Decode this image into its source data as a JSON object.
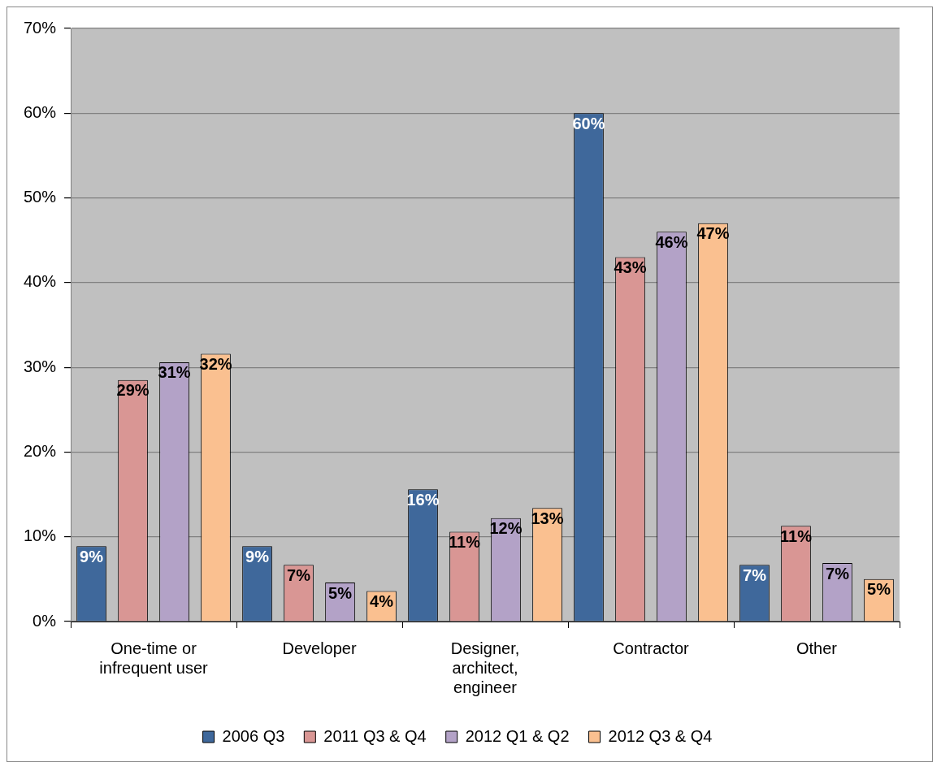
{
  "chart_data": {
    "type": "bar",
    "categories": [
      "One-time or infrequent user",
      "Developer",
      "Designer, architect, engineer",
      "Contractor",
      "Other"
    ],
    "series": [
      {
        "name": "2006 Q3",
        "color": "#3f689b",
        "values": [
          8.9,
          8.9,
          15.6,
          60.0,
          6.7
        ],
        "value_labels": [
          "9%",
          "9%",
          "16%",
          "60%",
          "7%"
        ]
      },
      {
        "name": "2011 Q3 & Q4",
        "color": "#d99694",
        "values": [
          28.5,
          6.7,
          10.6,
          43.0,
          11.3
        ],
        "value_labels": [
          "29%",
          "7%",
          "11%",
          "43%",
          "11%"
        ]
      },
      {
        "name": "2012 Q1 & Q2",
        "color": "#b3a2c7",
        "values": [
          30.6,
          4.6,
          12.2,
          46.0,
          6.9
        ],
        "value_labels": [
          "31%",
          "5%",
          "12%",
          "46%",
          "7%"
        ]
      },
      {
        "name": "2012 Q3 & Q4",
        "color": "#fac090",
        "values": [
          31.6,
          3.6,
          13.4,
          47.0,
          5.0
        ],
        "value_labels": [
          "32%",
          "4%",
          "13%",
          "47%",
          "5%"
        ]
      }
    ],
    "ylim": [
      0,
      70
    ],
    "yticks": [
      {
        "value": 0,
        "label": "0%"
      },
      {
        "value": 10,
        "label": "10%"
      },
      {
        "value": 20,
        "label": "20%"
      },
      {
        "value": 30,
        "label": "30%"
      },
      {
        "value": 40,
        "label": "40%"
      },
      {
        "value": 50,
        "label": "50%"
      },
      {
        "value": 60,
        "label": "60%"
      },
      {
        "value": 70,
        "label": "70%"
      }
    ],
    "grid": "y",
    "legend": "bottom"
  }
}
